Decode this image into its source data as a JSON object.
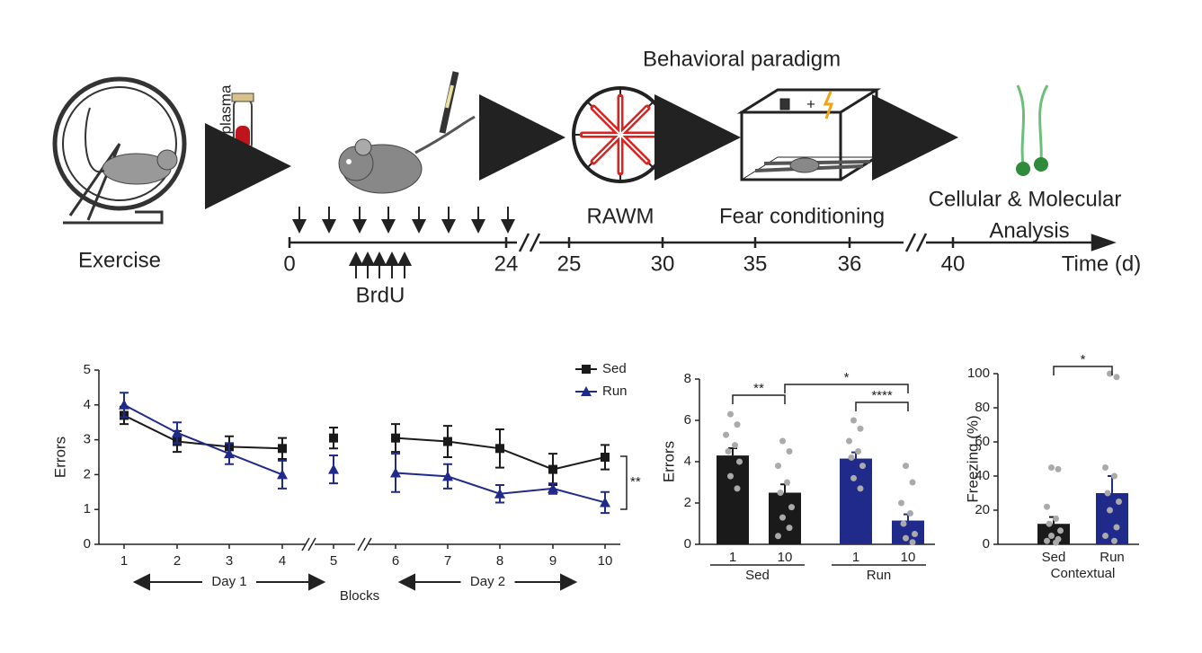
{
  "diagram": {
    "exercise": "Exercise",
    "plasma": "plasma",
    "title": "Behavioral paradigm",
    "rawm": "RAWM",
    "fear": "Fear conditioning",
    "analysis": [
      "Cellular & Molecular",
      "Analysis"
    ],
    "timeline": {
      "labels": [
        0,
        24,
        25,
        30,
        35,
        36,
        40
      ],
      "axis_label": "Time (d)",
      "brdu": "BrdU"
    }
  },
  "chart_data": [
    {
      "type": "line",
      "ylabel": "Errors",
      "xlabel": "Blocks",
      "categories": [
        "1",
        "2",
        "3",
        "4",
        "5",
        "6",
        "7",
        "8",
        "9",
        "10"
      ],
      "ylim": [
        0,
        5
      ],
      "yticks": [
        0,
        1,
        2,
        3,
        4,
        5
      ],
      "legend": "top-right",
      "series": [
        {
          "name": "Sed",
          "color": "#1a1a1a",
          "marker": "square",
          "values": [
            3.7,
            2.95,
            2.8,
            2.75,
            3.05,
            3.05,
            2.95,
            2.75,
            2.15,
            2.5
          ],
          "errors": [
            0.25,
            0.3,
            0.3,
            0.3,
            0.3,
            0.4,
            0.45,
            0.55,
            0.45,
            0.35
          ]
        },
        {
          "name": "Run",
          "color": "#1f2a8a",
          "marker": "triangle",
          "values": [
            4.0,
            3.2,
            2.6,
            2.0,
            2.15,
            2.05,
            1.95,
            1.45,
            1.6,
            1.2
          ],
          "errors": [
            0.35,
            0.3,
            0.3,
            0.4,
            0.4,
            0.55,
            0.35,
            0.25,
            0.15,
            0.3
          ]
        }
      ],
      "day_labels": [
        "Day 1",
        "Day 2"
      ],
      "significance": "**"
    },
    {
      "type": "bar",
      "ylabel": "Errors",
      "categories": [
        "1",
        "10",
        "1",
        "10"
      ],
      "groups": [
        "Sed",
        "Run"
      ],
      "ylim": [
        0,
        8
      ],
      "yticks": [
        0,
        2,
        4,
        6,
        8
      ],
      "values": [
        4.3,
        2.5,
        4.15,
        1.15
      ],
      "errors": [
        0.35,
        0.4,
        0.3,
        0.3
      ],
      "colors": [
        "#1a1a1a",
        "#1a1a1a",
        "#1f2a8a",
        "#1f2a8a"
      ],
      "points": [
        [
          6.3,
          5.8,
          5.3,
          4.8,
          4.5,
          4.0,
          3.3,
          2.7
        ],
        [
          5.0,
          4.5,
          3.8,
          3.0,
          2.5,
          1.8,
          1.3,
          0.8,
          0.4
        ],
        [
          6.0,
          5.6,
          5.0,
          4.5,
          4.2,
          3.8,
          3.2,
          2.7
        ],
        [
          3.8,
          3.0,
          2.0,
          1.5,
          1.0,
          0.5,
          0.3,
          0.1
        ]
      ],
      "significance": [
        {
          "label": "**",
          "between": [
            0,
            1
          ]
        },
        {
          "label": "*",
          "between": [
            1,
            3
          ]
        },
        {
          "label": "****",
          "between": [
            2,
            3
          ]
        }
      ]
    },
    {
      "type": "bar",
      "ylabel": "Freezing (%)",
      "xlabel": "Contextual",
      "categories": [
        "Sed",
        "Run"
      ],
      "ylim": [
        0,
        100
      ],
      "yticks": [
        0,
        20,
        40,
        60,
        80,
        100
      ],
      "values": [
        12,
        30
      ],
      "errors": [
        4,
        10
      ],
      "colors": [
        "#1a1a1a",
        "#1f2a8a"
      ],
      "points": [
        [
          45,
          44,
          22,
          15,
          12,
          8,
          5,
          3,
          2,
          1
        ],
        [
          100,
          98,
          45,
          40,
          30,
          25,
          20,
          10,
          5,
          2
        ]
      ],
      "significance": [
        {
          "label": "*",
          "between": [
            0,
            1
          ]
        }
      ]
    }
  ]
}
